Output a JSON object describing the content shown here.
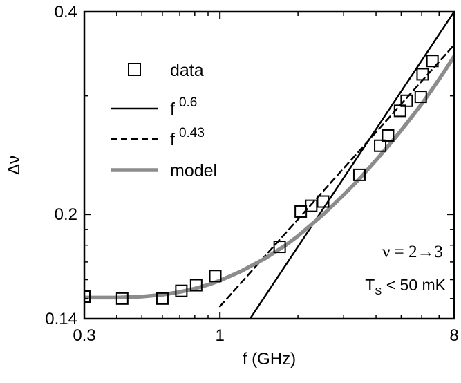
{
  "chart_data": {
    "type": "scatter",
    "xscale": "log",
    "yscale": "log",
    "xlim": [
      0.3,
      8
    ],
    "ylim": [
      0.14,
      0.4
    ],
    "xlabel": "f (GHz)",
    "ylabel": "Δν",
    "x_ticks": [
      {
        "value": 0.3,
        "label": "0.3"
      },
      {
        "value": 1,
        "label": "1"
      },
      {
        "value": 8,
        "label": "8"
      }
    ],
    "y_ticks": [
      {
        "value": 0.14,
        "label": "0.14"
      },
      {
        "value": 0.2,
        "label": "0.2"
      },
      {
        "value": 0.4,
        "label": "0.4"
      }
    ],
    "series": [
      {
        "name": "data",
        "style": "open-square",
        "color": "#000000",
        "points": [
          [
            0.3,
            0.151
          ],
          [
            0.42,
            0.15
          ],
          [
            0.6,
            0.15
          ],
          [
            0.71,
            0.154
          ],
          [
            0.81,
            0.157
          ],
          [
            0.96,
            0.162
          ],
          [
            1.7,
            0.179
          ],
          [
            2.05,
            0.202
          ],
          [
            2.25,
            0.206
          ],
          [
            2.5,
            0.209
          ],
          [
            3.45,
            0.229
          ],
          [
            4.15,
            0.253
          ],
          [
            4.45,
            0.262
          ],
          [
            4.95,
            0.285
          ],
          [
            5.25,
            0.295
          ],
          [
            5.95,
            0.299
          ],
          [
            6.05,
            0.323
          ],
          [
            6.6,
            0.338
          ]
        ]
      },
      {
        "name": "f",
        "exponent": "0.6",
        "style": "solid",
        "color": "#000000",
        "points": [
          [
            1.307,
            0.14
          ],
          [
            8.0,
            0.4
          ]
        ]
      },
      {
        "name": "f",
        "exponent": "0.43",
        "style": "dashed",
        "color": "#000000",
        "points": [
          [
            1.0,
            0.146
          ],
          [
            8.0,
            0.357
          ]
        ]
      },
      {
        "name": "model",
        "style": "solid-thick",
        "color": "#8c8c8c",
        "points": [
          [
            0.3,
            0.1505
          ],
          [
            0.4,
            0.1505
          ],
          [
            0.5,
            0.151
          ],
          [
            0.6,
            0.152
          ],
          [
            0.7,
            0.1534
          ],
          [
            0.8,
            0.1552
          ],
          [
            0.9,
            0.1572
          ],
          [
            1.0,
            0.1595
          ],
          [
            1.2,
            0.1645
          ],
          [
            1.5,
            0.1722
          ],
          [
            1.8,
            0.1802
          ],
          [
            2.0,
            0.1858
          ],
          [
            2.5,
            0.1999
          ],
          [
            3.0,
            0.2138
          ],
          [
            3.5,
            0.2272
          ],
          [
            4.0,
            0.2408
          ],
          [
            4.5,
            0.2538
          ],
          [
            5.0,
            0.2666
          ],
          [
            5.5,
            0.2794
          ],
          [
            6.0,
            0.2919
          ],
          [
            6.5,
            0.3046
          ],
          [
            7.0,
            0.3175
          ],
          [
            7.5,
            0.3304
          ],
          [
            8.0,
            0.3434
          ]
        ]
      }
    ],
    "legend_position": "top-left",
    "annotations": {
      "nu_transition": "ν = 2→3",
      "ts_main": "T",
      "ts_sub": "S",
      "ts_rest": " < 50 mK"
    }
  }
}
